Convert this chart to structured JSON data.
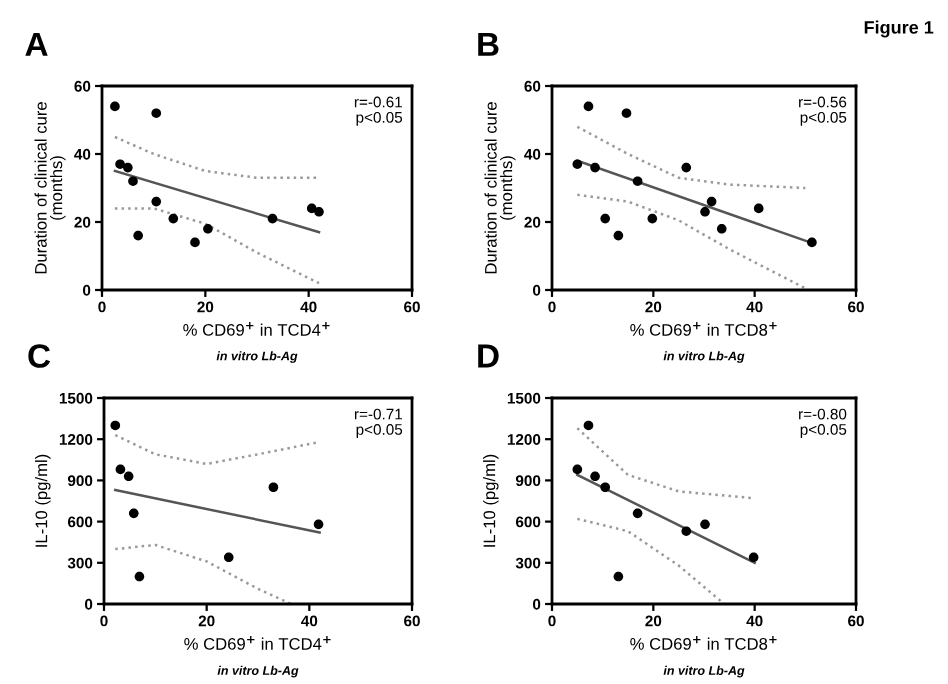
{
  "chart_data": [
    {
      "type": "scatter",
      "title": "A",
      "xlabel": "% CD69$^{+}$ in TCD4$^{+}$\nin vitro Lb-Ag",
      "ylabel": "Duration of clinical cure\n(months)",
      "annotations": [
        "r=-0.61\np<0.05"
      ],
      "xlim": [
        0,
        60
      ],
      "xticks": [
        0,
        20,
        40,
        60
      ],
      "ylim": [
        0,
        60
      ],
      "yticks": [
        0,
        20,
        40,
        60
      ],
      "grid": false,
      "legend": false,
      "marker": "circle",
      "series": [
        {
          "color": "#000000",
          "x": [
            2.5,
            3.5,
            5,
            6,
            7,
            10.5,
            10.5,
            13.8,
            18,
            20.5,
            33,
            40.6,
            42
          ],
          "values": [
            54,
            37,
            36,
            32,
            16,
            52,
            26,
            21,
            14,
            18,
            21,
            24,
            23
          ]
        },
        {
          "type": "line",
          "marker": "none",
          "color": "#555555",
          "line_style": "solid",
          "x": [
            2.5,
            42
          ],
          "values": [
            35,
            17
          ]
        },
        {
          "type": "line",
          "marker": "none",
          "color": "#999999",
          "line_style": "dotted",
          "x": [
            2.5,
            10,
            20,
            30,
            42
          ],
          "values": [
            45,
            40,
            35,
            33,
            33
          ]
        },
        {
          "type": "line",
          "marker": "none",
          "color": "#999999",
          "line_style": "dotted",
          "x": [
            2.5,
            10,
            20,
            30,
            42
          ],
          "values": [
            24,
            24,
            19.5,
            11,
            2
          ]
        }
      ]
    },
    {
      "type": "scatter",
      "title": "B",
      "xlabel": "% CD69$^{+}$ in TCD8$^{+}$\nin vitro Lb-Ag",
      "ylabel": "Duration of clinical cure\n(months)",
      "annotations": [
        "r=-0.56\np<0.05",
        "Figure 1"
      ],
      "xlim": [
        0,
        60
      ],
      "xticks": [
        0,
        20,
        40,
        60
      ],
      "ylim": [
        0,
        60
      ],
      "yticks": [
        0,
        20,
        40,
        60
      ],
      "grid": false,
      "legend": false,
      "marker": "circle",
      "series": [
        {
          "color": "#000000",
          "x": [
            5,
            7.2,
            8.5,
            10.5,
            13.1,
            14.7,
            16.9,
            19.8,
            26.5,
            30.2,
            31.5,
            33.5,
            40.8,
            51.3
          ],
          "values": [
            37,
            54,
            36,
            21,
            16,
            52,
            32,
            21,
            36,
            23,
            26,
            18,
            24,
            14
          ]
        },
        {
          "type": "line",
          "marker": "none",
          "color": "#555555",
          "line_style": "solid",
          "x": [
            5,
            51
          ],
          "values": [
            38,
            14
          ]
        },
        {
          "type": "line",
          "marker": "none",
          "color": "#999999",
          "line_style": "dotted",
          "x": [
            5,
            15,
            25,
            35,
            50
          ],
          "values": [
            48,
            40,
            33,
            31,
            30
          ]
        },
        {
          "type": "line",
          "marker": "none",
          "color": "#999999",
          "line_style": "dotted",
          "x": [
            5,
            15,
            25,
            35,
            50
          ],
          "values": [
            28,
            26,
            20.5,
            12,
            0.5
          ]
        }
      ]
    },
    {
      "type": "scatter",
      "title": "C",
      "xlabel": "% CD69$^{+}$ in TCD4$^{+}$\nin vitro Lb-Ag",
      "ylabel": "IL-10 (pg/ml)",
      "annotations": [
        "r=-0.71\np<0.05"
      ],
      "xlim": [
        0,
        60
      ],
      "xticks": [
        0,
        20,
        40,
        60
      ],
      "ylim": [
        0,
        1500
      ],
      "yticks": [
        0,
        300,
        600,
        900,
        1200,
        1500
      ],
      "grid": false,
      "legend": false,
      "marker": "circle",
      "series": [
        {
          "color": "#000000",
          "x": [
            2.2,
            3.2,
            4.8,
            5.8,
            6.9,
            24.3,
            33,
            41.8
          ],
          "values": [
            1300,
            980,
            930,
            660,
            200,
            340,
            850,
            580
          ]
        },
        {
          "type": "line",
          "marker": "none",
          "color": "#555555",
          "line_style": "solid",
          "x": [
            2.2,
            42
          ],
          "values": [
            830,
            520
          ]
        },
        {
          "type": "line",
          "marker": "none",
          "color": "#999999",
          "line_style": "dotted",
          "x": [
            2.2,
            10,
            20,
            30,
            42
          ],
          "values": [
            1230,
            1090,
            1020,
            1090,
            1180
          ]
        },
        {
          "type": "line",
          "marker": "none",
          "color": "#999999",
          "line_style": "dotted",
          "x": [
            2.2,
            10,
            20,
            30,
            36.5
          ],
          "values": [
            400,
            430,
            310,
            110,
            0
          ]
        }
      ]
    },
    {
      "type": "scatter",
      "title": "D",
      "xlabel": "% CD69$^{+}$ in TCD8$^{+}$\nin vitro Lb-Ag",
      "ylabel": "IL-10 (pg/ml)",
      "annotations": [
        "r=-0.80\np<0.05"
      ],
      "xlim": [
        0,
        60
      ],
      "xticks": [
        0,
        20,
        40,
        60
      ],
      "ylim": [
        0,
        1500
      ],
      "yticks": [
        0,
        300,
        600,
        900,
        1200,
        1500
      ],
      "grid": false,
      "legend": false,
      "marker": "circle",
      "series": [
        {
          "color": "#000000",
          "x": [
            5,
            7.2,
            8.5,
            10.5,
            13.1,
            16.9,
            26.5,
            30.2,
            39.8
          ],
          "values": [
            980,
            1300,
            930,
            850,
            200,
            660,
            530,
            580,
            340
          ]
        },
        {
          "type": "line",
          "marker": "none",
          "color": "#555555",
          "line_style": "solid",
          "x": [
            5,
            40
          ],
          "values": [
            940,
            300
          ]
        },
        {
          "type": "line",
          "marker": "none",
          "color": "#999999",
          "line_style": "dotted",
          "x": [
            5,
            15,
            25,
            40
          ],
          "values": [
            1280,
            940,
            820,
            770
          ]
        },
        {
          "type": "line",
          "marker": "none",
          "color": "#999999",
          "line_style": "dotted",
          "x": [
            5,
            15,
            25,
            34
          ],
          "values": [
            620,
            530,
            280,
            0
          ]
        }
      ]
    }
  ]
}
